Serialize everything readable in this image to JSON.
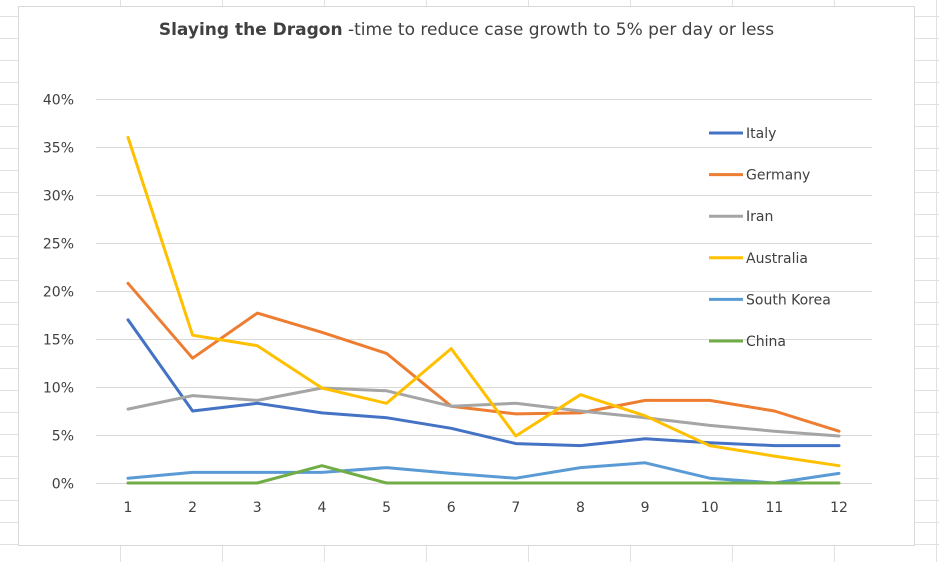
{
  "title": {
    "bold": "Slaying the Dragon",
    "rest": " -time to reduce case growth to 5% per day or less"
  },
  "chart_data": {
    "type": "line",
    "title": "Slaying the Dragon -time to reduce case growth to 5% per day or less",
    "xlabel": "",
    "ylabel": "",
    "x": [
      1,
      2,
      3,
      4,
      5,
      6,
      7,
      8,
      9,
      10,
      11,
      12
    ],
    "ylim": [
      0,
      0.4
    ],
    "y_ticks": [
      "0%",
      "5%",
      "10%",
      "15%",
      "20%",
      "25%",
      "30%",
      "35%",
      "40%"
    ],
    "x_ticks": [
      "1",
      "2",
      "3",
      "4",
      "5",
      "6",
      "7",
      "8",
      "9",
      "10",
      "11",
      "12"
    ],
    "grid": "horizontal",
    "legend_position": "right",
    "series": [
      {
        "name": "Italy",
        "color": "#4472c4",
        "values": [
          0.17,
          0.075,
          0.083,
          0.073,
          0.068,
          0.057,
          0.041,
          0.039,
          0.046,
          0.042,
          0.039,
          0.039
        ]
      },
      {
        "name": "Germany",
        "color": "#ed7d31",
        "values": [
          0.208,
          0.13,
          0.177,
          0.157,
          0.135,
          0.08,
          0.072,
          0.073,
          0.086,
          0.086,
          0.075,
          0.054
        ]
      },
      {
        "name": "Iran",
        "color": "#a5a5a5",
        "values": [
          0.077,
          0.091,
          0.086,
          0.099,
          0.096,
          0.08,
          0.083,
          0.075,
          0.068,
          0.06,
          0.054,
          0.049
        ]
      },
      {
        "name": "Australia",
        "color": "#ffc000",
        "values": [
          0.36,
          0.154,
          0.143,
          0.099,
          0.083,
          0.14,
          0.049,
          0.092,
          0.07,
          0.039,
          0.028,
          0.018
        ]
      },
      {
        "name": "South Korea",
        "color": "#5b9bd5",
        "values": [
          0.005,
          0.011,
          0.011,
          0.011,
          0.016,
          0.01,
          0.005,
          0.016,
          0.021,
          0.005,
          0.0,
          0.01
        ]
      },
      {
        "name": "China",
        "color": "#70ad47",
        "values": [
          0.0,
          0.0,
          0.0,
          0.018,
          0.0,
          0.0,
          0.0,
          0.0,
          0.0,
          0.0,
          0.0,
          0.0
        ]
      }
    ]
  }
}
